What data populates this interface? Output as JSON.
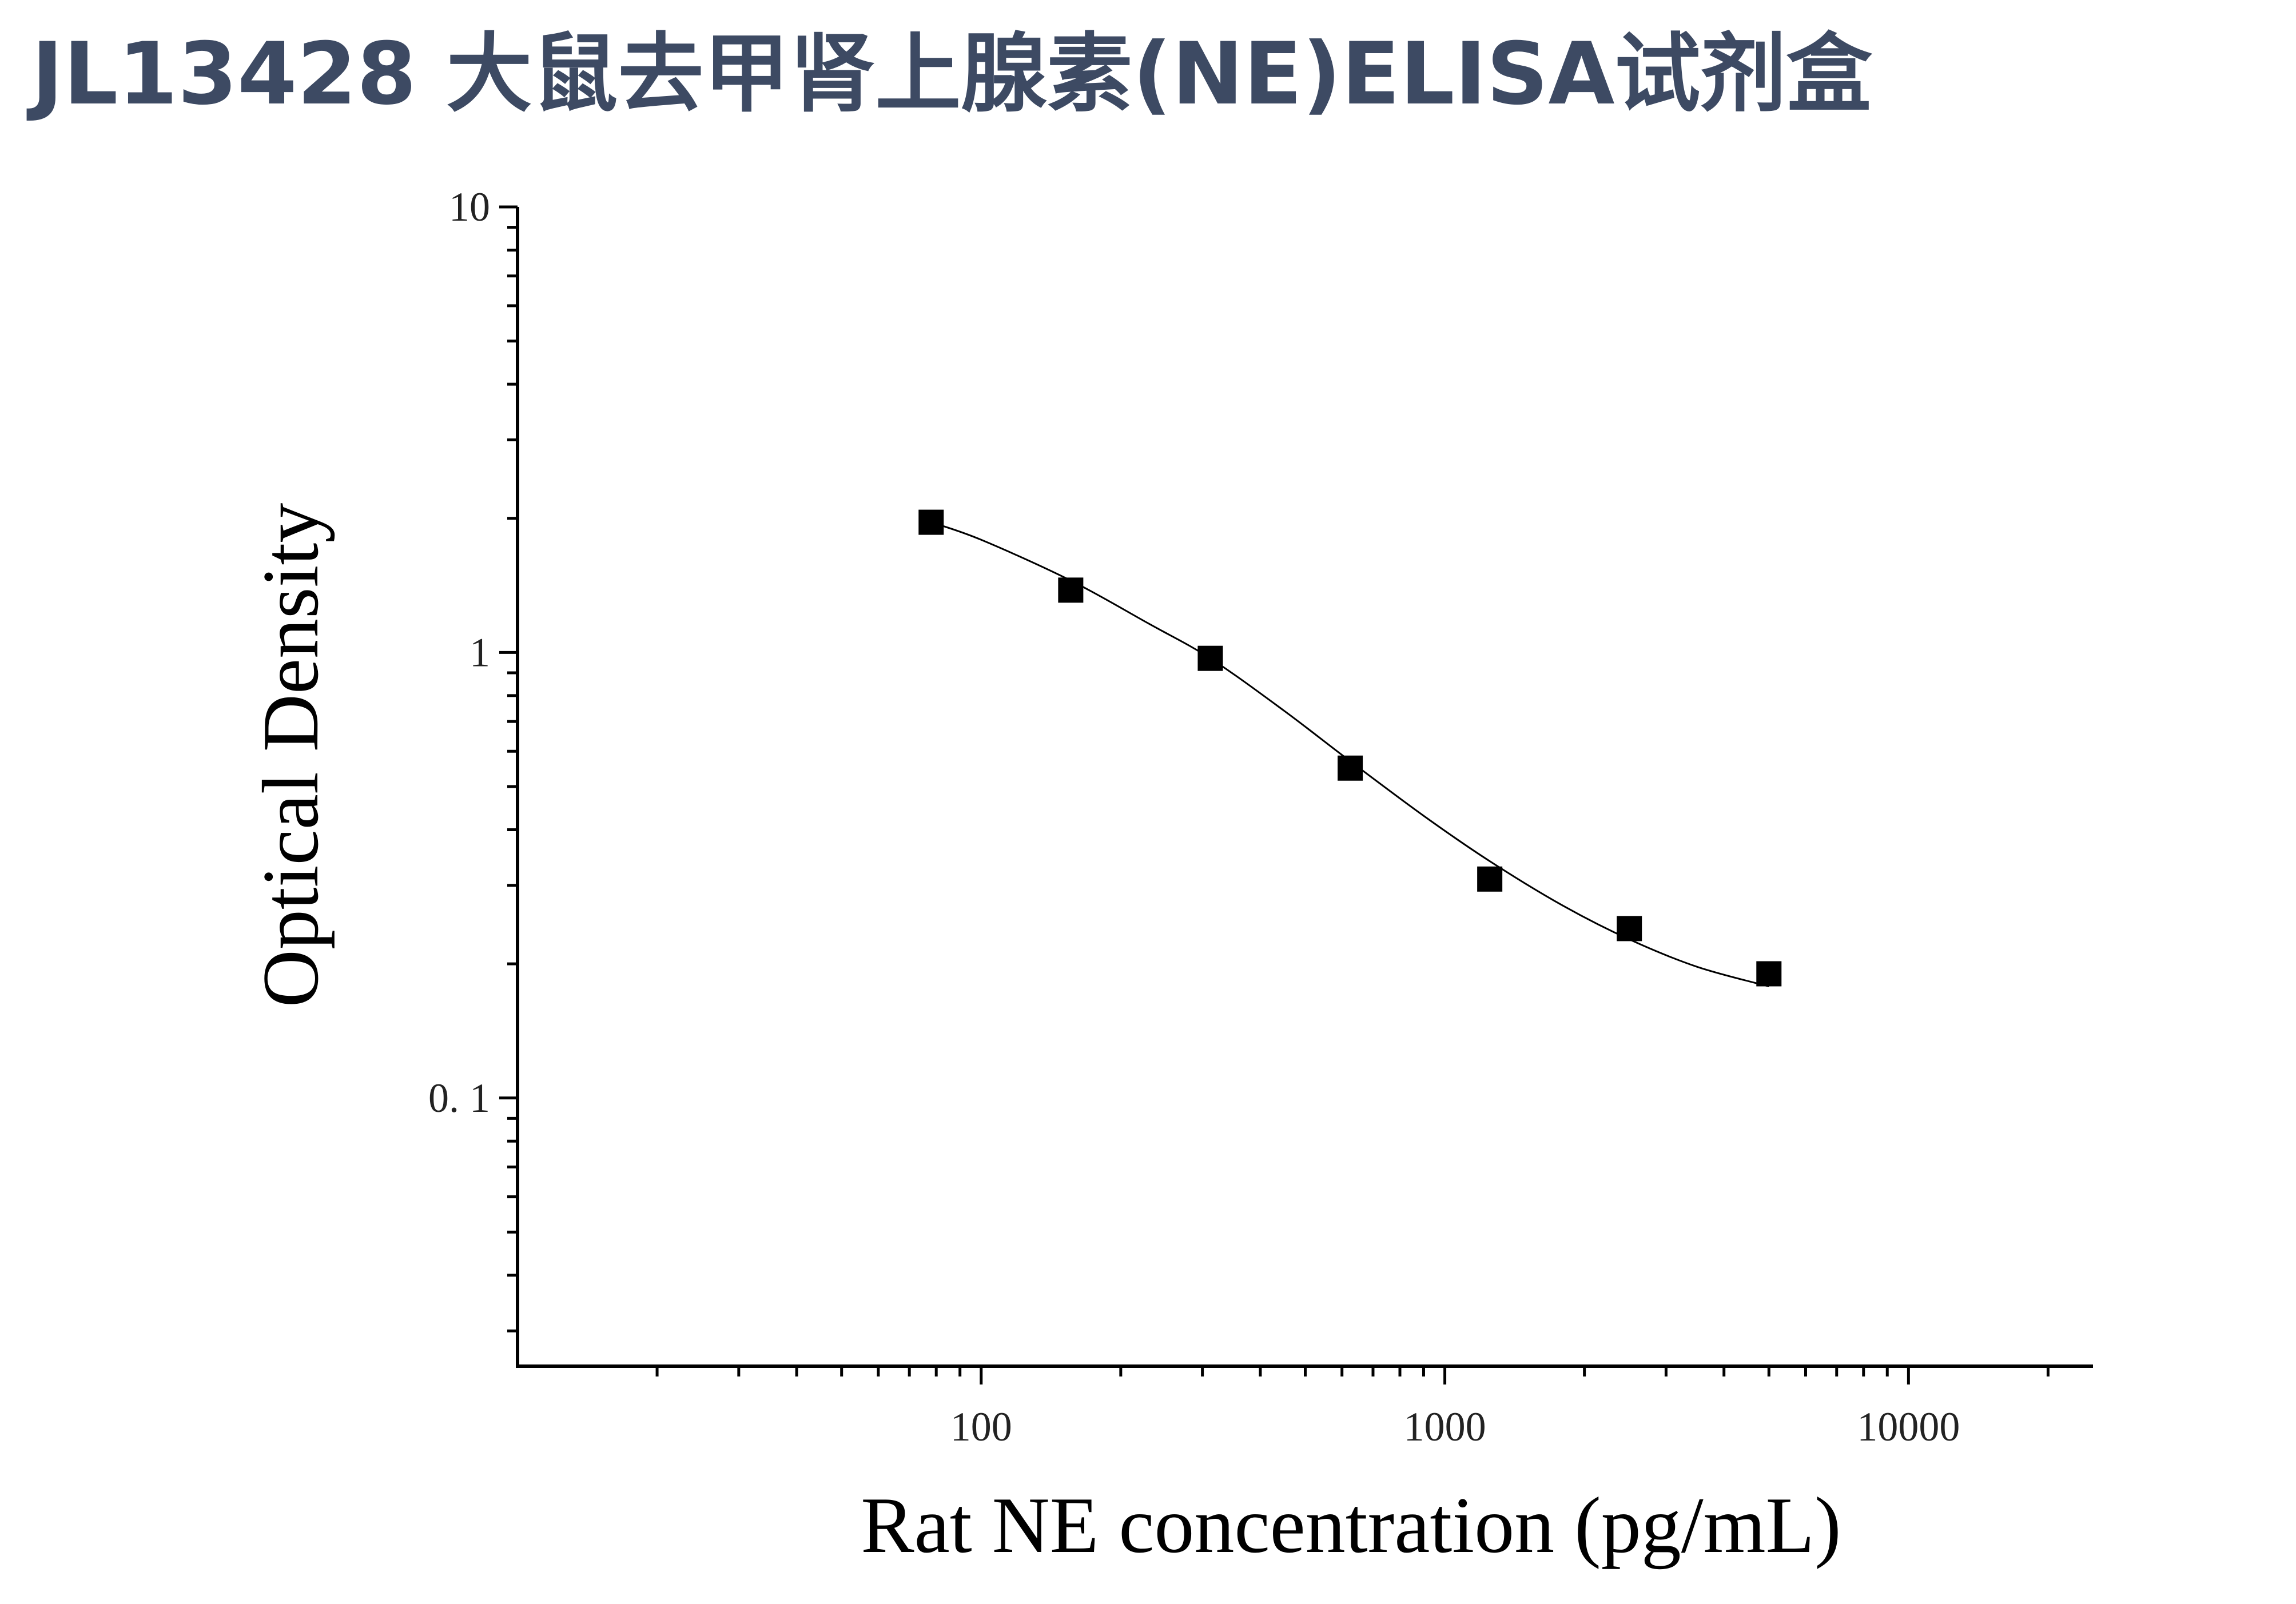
{
  "title": "JL13428 大鼠去甲肾上腺素(NE)ELISA试剂盒",
  "chart_data": {
    "type": "scatter",
    "title": "JL13428 大鼠去甲肾上腺素(NE)ELISA试剂盒",
    "xlabel": "Rat NE concentration (pg/mL)",
    "ylabel": "Optical Density",
    "x_scale": "log",
    "y_scale": "log",
    "xlim": [
      10,
      25000
    ],
    "ylim": [
      0.025,
      10
    ],
    "x_ticks": [
      {
        "value": 100,
        "label": "100"
      },
      {
        "value": 1000,
        "label": "1000"
      },
      {
        "value": 10000,
        "label": "10000"
      }
    ],
    "y_ticks": [
      {
        "value": 10,
        "label": "10"
      },
      {
        "value": 1,
        "label": "1"
      },
      {
        "value": 0.1,
        "label": "0. 1"
      }
    ],
    "grid": false,
    "legend": "none",
    "series": [
      {
        "marker": "square",
        "color": "#000000",
        "points": [
          {
            "x": 78,
            "y": 1.96
          },
          {
            "x": 156,
            "y": 1.38
          },
          {
            "x": 312,
            "y": 0.97
          },
          {
            "x": 625,
            "y": 0.55
          },
          {
            "x": 1250,
            "y": 0.31
          },
          {
            "x": 2500,
            "y": 0.24
          },
          {
            "x": 5000,
            "y": 0.19
          }
        ]
      }
    ],
    "fit_curve": {
      "color": "#000000",
      "points": [
        {
          "x": 78,
          "y": 1.96
        },
        {
          "x": 100,
          "y": 1.79
        },
        {
          "x": 156,
          "y": 1.45
        },
        {
          "x": 230,
          "y": 1.16
        },
        {
          "x": 312,
          "y": 0.97
        },
        {
          "x": 450,
          "y": 0.74
        },
        {
          "x": 625,
          "y": 0.57
        },
        {
          "x": 900,
          "y": 0.43
        },
        {
          "x": 1250,
          "y": 0.34
        },
        {
          "x": 1800,
          "y": 0.27
        },
        {
          "x": 2500,
          "y": 0.227
        },
        {
          "x": 3500,
          "y": 0.197
        },
        {
          "x": 5000,
          "y": 0.178
        }
      ]
    }
  }
}
